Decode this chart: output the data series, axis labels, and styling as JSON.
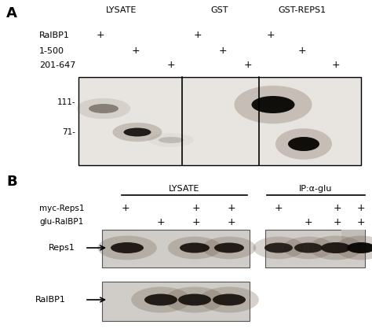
{
  "fig_width": 4.74,
  "fig_height": 4.22,
  "dpi": 100,
  "bg_color": "#ffffff",
  "panel_A": {
    "label": "A",
    "title_lysate": "LYSATE",
    "title_gst": "GST",
    "title_gstreps1": "GST-REPS1",
    "row_labels": [
      "RalBP1",
      "1-500",
      "201-647"
    ],
    "mw_labels": [
      "111-",
      "71-"
    ]
  },
  "panel_B": {
    "label": "B",
    "title_lysate": "LYSATE",
    "title_ip": "IP:α-glu",
    "row_labels": [
      "myc-Reps1",
      "glu-RalBP1"
    ],
    "band_labels": [
      "Reps1",
      "RalBP1"
    ]
  },
  "gel_bg": "#e8e4e0",
  "gel_bg_dark": "#d0ccc8",
  "gel_band_dark": "#1a1410",
  "gel_band_mid": "#3a3028"
}
